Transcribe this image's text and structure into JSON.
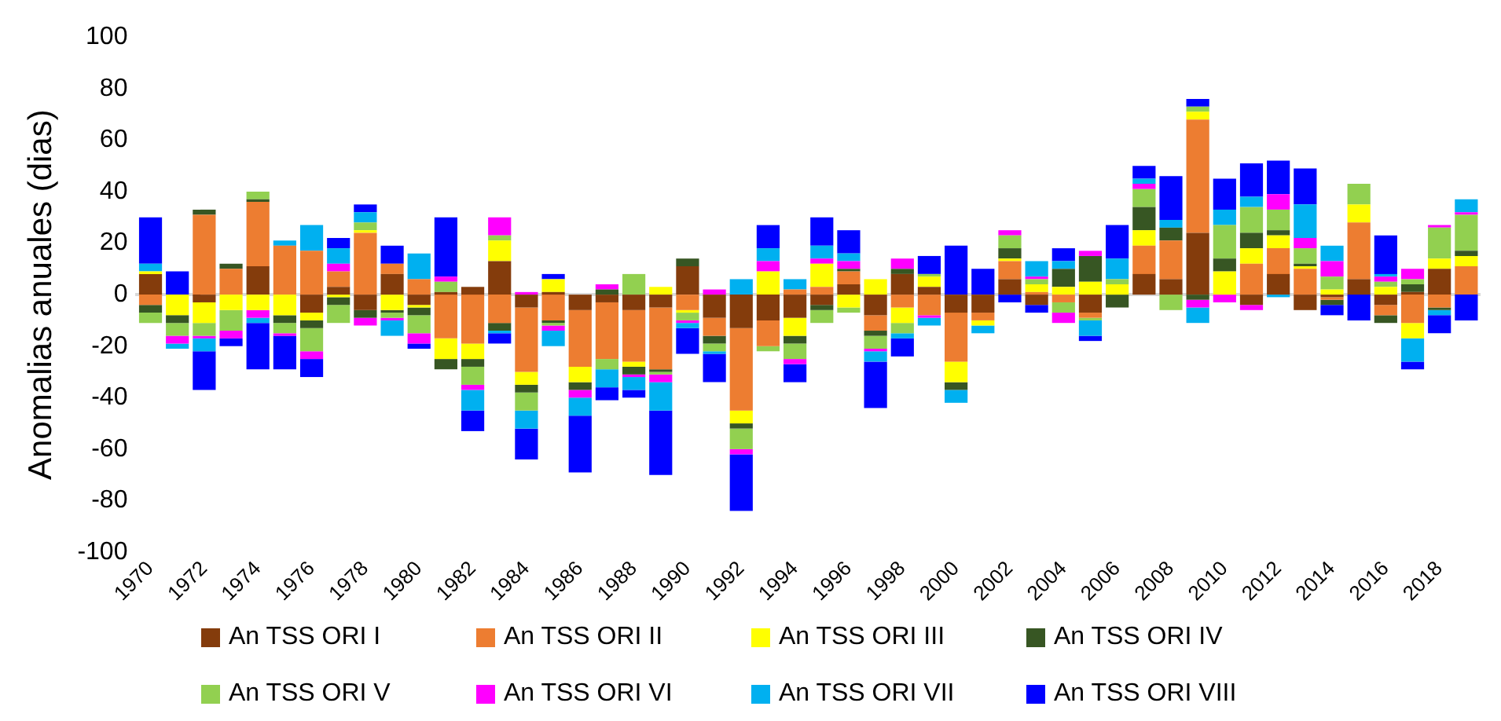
{
  "chart_data": {
    "type": "bar",
    "stacked": true,
    "ylabel": "Anomalias anuales (dias)",
    "categories": [
      "1970",
      null,
      "1972",
      null,
      "1974",
      null,
      "1976",
      null,
      "1978",
      null,
      "1980",
      null,
      "1982",
      null,
      "1984",
      null,
      "1986",
      null,
      "1988",
      null,
      "1990",
      null,
      "1992",
      null,
      "1994",
      null,
      "1996",
      null,
      "1998",
      null,
      "2000",
      null,
      "2002",
      null,
      "2004",
      null,
      "2006",
      null,
      "2008",
      null,
      "2010",
      null,
      "2012",
      null,
      "2014",
      null,
      "2016",
      null,
      "2018",
      null
    ],
    "series": [
      {
        "name": "An TSS ORI I",
        "color": "#843c0c",
        "values": [
          8,
          0,
          -3,
          0,
          11,
          0,
          -7,
          3,
          -6,
          8,
          -4,
          1,
          3,
          13,
          -5,
          1,
          -6,
          -3,
          -6,
          -5,
          11,
          -9,
          -13,
          -10,
          -9,
          -4,
          4,
          -8,
          8,
          3,
          -7,
          -7,
          6,
          -4,
          0,
          -7,
          0,
          8,
          6,
          24,
          0,
          -4,
          8,
          -6,
          -1,
          6,
          -4,
          1,
          10,
          0
        ]
      },
      {
        "name": "An TSS ORI II",
        "color": "#ed7d31",
        "values": [
          -4,
          0,
          31,
          10,
          25,
          19,
          17,
          6,
          24,
          4,
          6,
          -17,
          -19,
          -11,
          -25,
          -10,
          -22,
          -22,
          -20,
          -24,
          -6,
          -7,
          -32,
          -10,
          2,
          3,
          5,
          -6,
          -5,
          -8,
          -19,
          -3,
          7,
          1,
          -3,
          -2,
          0,
          11,
          15,
          44,
          0,
          12,
          10,
          10,
          -1,
          22,
          -4,
          -11,
          -5,
          11
        ]
      },
      {
        "name": "An TSS ORI III",
        "color": "#ffff00",
        "values": [
          1,
          -8,
          -8,
          -6,
          -6,
          -8,
          -3,
          -1,
          1,
          -6,
          -1,
          -8,
          -6,
          8,
          -5,
          5,
          -6,
          0,
          -2,
          3,
          -1,
          0,
          -5,
          9,
          -7,
          9,
          -5,
          6,
          -6,
          4,
          -8,
          -2,
          1,
          3,
          3,
          5,
          4,
          6,
          0,
          3,
          9,
          6,
          5,
          1,
          2,
          7,
          3,
          -6,
          4,
          4
        ]
      },
      {
        "name": "An TSS ORI IV",
        "color": "#375623",
        "values": [
          -3,
          -3,
          2,
          2,
          1,
          -3,
          -3,
          -3,
          -3,
          -1,
          -3,
          -4,
          -3,
          -3,
          -3,
          -1,
          -3,
          2,
          -3,
          -1,
          3,
          -3,
          -2,
          0,
          -3,
          -2,
          1,
          -2,
          2,
          0,
          -3,
          0,
          4,
          0,
          7,
          10,
          -5,
          9,
          5,
          -2,
          5,
          6,
          2,
          1,
          -2,
          0,
          -3,
          3,
          -1,
          2
        ]
      },
      {
        "name": "An TSS ORI V",
        "color": "#92d050",
        "values": [
          -4,
          -5,
          -5,
          -8,
          3,
          -4,
          -9,
          -7,
          3,
          -2,
          -7,
          4,
          -7,
          2,
          -7,
          -1,
          0,
          -4,
          8,
          -1,
          -3,
          -3,
          -8,
          -2,
          -6,
          -5,
          -2,
          -5,
          -4,
          1,
          0,
          0,
          5,
          2,
          -4,
          -1,
          2,
          7,
          -6,
          2,
          13,
          10,
          8,
          6,
          5,
          8,
          2,
          2,
          12,
          14
        ]
      },
      {
        "name": "An TSS ORI VI",
        "color": "#ff00ff",
        "values": [
          0,
          -3,
          -1,
          -3,
          -3,
          -1,
          -3,
          3,
          -3,
          -1,
          -4,
          2,
          -2,
          7,
          1,
          -2,
          -3,
          2,
          -1,
          -3,
          -1,
          2,
          -2,
          4,
          -2,
          2,
          3,
          -1,
          4,
          -1,
          0,
          0,
          2,
          1,
          -4,
          2,
          0,
          2,
          0,
          -3,
          -3,
          -2,
          6,
          4,
          6,
          0,
          2,
          4,
          1,
          1
        ]
      },
      {
        "name": "An TSS ORI VII",
        "color": "#00b0f0",
        "values": [
          3,
          -2,
          -5,
          0,
          -2,
          2,
          10,
          6,
          4,
          -6,
          10,
          0,
          -8,
          -1,
          -7,
          -6,
          -7,
          -7,
          -5,
          -11,
          -2,
          -1,
          6,
          5,
          4,
          5,
          3,
          -4,
          -2,
          -3,
          -5,
          -3,
          0,
          6,
          3,
          -6,
          8,
          2,
          3,
          -6,
          6,
          4,
          -1,
          13,
          6,
          0,
          1,
          -9,
          -2,
          5
        ]
      },
      {
        "name": "An TSS ORI VIII",
        "color": "#0000ff",
        "values": [
          18,
          9,
          -15,
          -3,
          -18,
          -13,
          -7,
          4,
          3,
          7,
          -2,
          23,
          -8,
          -4,
          -12,
          2,
          -22,
          -5,
          -3,
          -25,
          -10,
          -11,
          -22,
          9,
          -7,
          11,
          9,
          -18,
          -7,
          7,
          19,
          10,
          -3,
          -3,
          5,
          -2,
          13,
          5,
          17,
          3,
          12,
          13,
          13,
          14,
          -4,
          -10,
          15,
          -3,
          -7,
          -10
        ]
      }
    ],
    "ylim": [
      -100,
      100
    ],
    "yticks": [
      -100,
      -80,
      -60,
      -40,
      -20,
      0,
      20,
      40,
      60,
      80,
      100
    ],
    "legend": "bottom"
  }
}
